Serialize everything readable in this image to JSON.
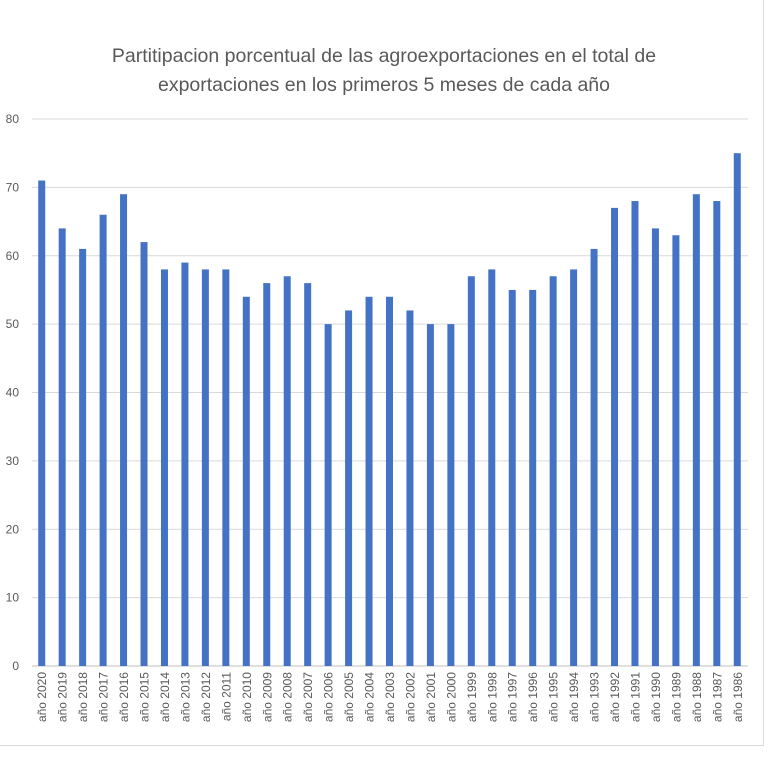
{
  "chart_data": {
    "type": "bar",
    "title_lines": [
      "Partitipacion porcentual de las agroexportaciones en el total de",
      "exportaciones en los primeros 5 meses de cada año"
    ],
    "categories": [
      "año 2020",
      "año 2019",
      "año 2018",
      "año 2017",
      "año 2016",
      "año 2015",
      "año 2014",
      "año 2013",
      "año 2012",
      "año 2011",
      "año 2010",
      "año 2009",
      "año 2008",
      "año 2007",
      "año 2006",
      "año 2005",
      "año 2004",
      "año 2003",
      "año 2002",
      "año 2001",
      "año 2000",
      "año 1999",
      "año 1998",
      "año 1997",
      "año 1996",
      "año 1995",
      "año 1994",
      "año 1993",
      "año 1992",
      "año 1991",
      "año 1990",
      "año 1989",
      "año 1988",
      "año 1987",
      "año 1986"
    ],
    "values": [
      71,
      64,
      61,
      66,
      69,
      62,
      58,
      59,
      58,
      58,
      54,
      56,
      57,
      56,
      50,
      52,
      54,
      54,
      52,
      50,
      50,
      57,
      58,
      55,
      55,
      57,
      58,
      61,
      67,
      68,
      64,
      63,
      69,
      68,
      75
    ],
    "xlabel": "",
    "ylabel": "",
    "ylim": [
      0,
      80
    ],
    "yticks": [
      0,
      10,
      20,
      30,
      40,
      50,
      60,
      70,
      80
    ],
    "grid": true,
    "legend": "none",
    "bar_color": "#4472c4"
  }
}
